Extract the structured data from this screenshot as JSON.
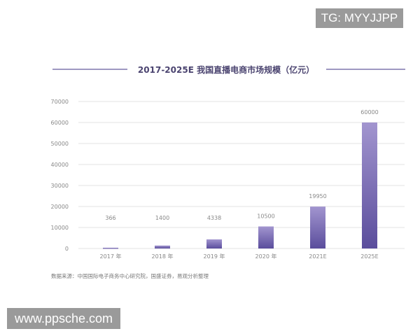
{
  "watermarks": {
    "top_right": "TG: MYYJJPP",
    "bottom_left": "www.ppsche.com"
  },
  "chart_data": {
    "type": "bar",
    "title": "2017-2025E 我国直播电商市场规模（亿元）",
    "categories": [
      "2017 年",
      "2018 年",
      "2019 年",
      "2020 年",
      "2021E",
      "2025E"
    ],
    "values": [
      366,
      1400,
      4338,
      10500,
      19950,
      60000
    ],
    "data_labels": [
      "366",
      "1400",
      "4338",
      "10500",
      "19950",
      "60000"
    ],
    "yticks": [
      "0",
      "10000",
      "20000",
      "30000",
      "40000",
      "50000",
      "60000",
      "70000"
    ],
    "ylim": [
      0,
      70000
    ],
    "grid": true,
    "xlabel": "",
    "ylabel": "",
    "source": "数据来源：中国国际电子商务中心研究院，国盛证券，易观分析整理",
    "colors": {
      "bar_top": "#a295cf",
      "bar_bottom": "#5a4d9c",
      "title": "#4b4470",
      "rule": "#7f76ae",
      "grid": "#e3e3e3",
      "text": "#888888"
    }
  }
}
